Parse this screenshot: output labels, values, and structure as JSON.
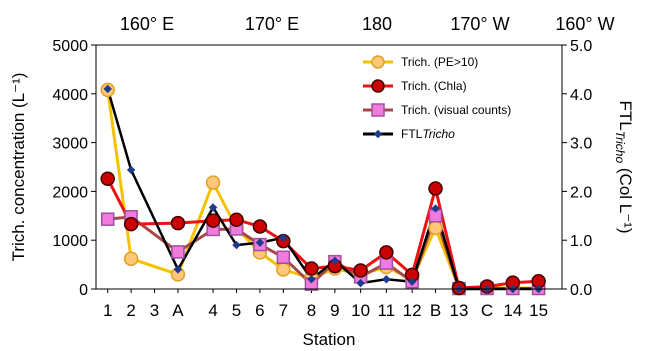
{
  "chart_data": {
    "type": "line",
    "xlabel": "Station",
    "ylabel_left": "Trich. concentration (L⁻¹)",
    "ylabel_right": "FTL",
    "ylabel_right_sub": "Tricho",
    "ylabel_right_unit": " (Col L⁻¹)",
    "top_axis_labels": [
      "160° E",
      "170° E",
      "180",
      "170° W",
      "160° W"
    ],
    "categories": [
      "1",
      "2",
      "3",
      "A",
      "4",
      "5",
      "6",
      "7",
      "8",
      "9",
      "10",
      "11",
      "12",
      "B",
      "13",
      "C",
      "14",
      "15"
    ],
    "category_x": [
      1,
      2,
      3,
      4,
      5.5,
      6.5,
      7.5,
      8.5,
      9.7,
      10.7,
      11.8,
      12.9,
      14,
      15,
      16,
      17.2,
      18.3,
      19.4
    ],
    "y_left": {
      "ticks": [
        "0",
        "1000",
        "2000",
        "3000",
        "4000",
        "5000"
      ],
      "range": [
        0,
        5000
      ]
    },
    "y_right": {
      "ticks": [
        "0.0",
        "1.0",
        "2.0",
        "3.0",
        "4.0",
        "5.0"
      ],
      "range": [
        0,
        5.0
      ]
    },
    "legend_position": "top-right",
    "series": [
      {
        "name": "Trich. (PE>10)",
        "axis": "left",
        "line_color": "#F5C200",
        "marker": "circle",
        "marker_fill": "#FFC77A",
        "marker_stroke": "#E0A020",
        "x": [
          1,
          2,
          4,
          5.5,
          6.5,
          7.5,
          8.5,
          9.7,
          10.7,
          11.8,
          12.9,
          14,
          15,
          16,
          17.2,
          18.3,
          19.4
        ],
        "values": [
          4080,
          620,
          300,
          2180,
          1250,
          750,
          400,
          220,
          420,
          300,
          450,
          200,
          1250,
          20,
          20,
          20,
          20
        ]
      },
      {
        "name": "Trich. (Chla)",
        "axis": "left",
        "line_color": "#EE1111",
        "marker": "circle",
        "marker_fill": "#CC0000",
        "marker_stroke": "#400000",
        "x": [
          1,
          2,
          4,
          5.5,
          6.5,
          7.5,
          8.5,
          9.7,
          10.7,
          11.8,
          12.9,
          14,
          15,
          16,
          17.2,
          18.3,
          19.4
        ],
        "values": [
          2260,
          1330,
          1350,
          1400,
          1420,
          1280,
          980,
          420,
          470,
          380,
          750,
          290,
          2060,
          20,
          50,
          130,
          160
        ]
      },
      {
        "name": "Trich. (visual counts)",
        "axis": "left",
        "line_color": "#A84747",
        "marker": "square",
        "marker_fill": "#F07BDD",
        "marker_stroke": "#A050A0",
        "x": [
          1,
          2,
          4,
          5.5,
          6.5,
          7.5,
          8.5,
          9.7,
          10.7,
          11.8,
          12.9,
          14,
          15,
          16,
          17.2,
          18.3,
          19.4
        ],
        "values": [
          1430,
          1480,
          760,
          1220,
          1230,
          910,
          650,
          100,
          560,
          250,
          530,
          150,
          1500,
          10,
          10,
          10,
          10
        ]
      },
      {
        "name": "FTL",
        "name_italic": "Tricho",
        "axis": "right",
        "line_color": "#000000",
        "marker": "diamond",
        "marker_fill": "#1F3B8C",
        "marker_stroke": "#1F3B8C",
        "x": [
          1,
          2,
          4,
          5.5,
          6.5,
          7.5,
          8.5,
          9.7,
          10.7,
          11.8,
          12.9,
          14,
          15,
          16,
          17.2,
          18.3,
          19.4
        ],
        "values": [
          4.1,
          2.44,
          0.4,
          1.67,
          0.9,
          0.95,
          1.05,
          0.2,
          0.58,
          0.12,
          0.2,
          0.15,
          1.65,
          0.0,
          0.0,
          0.0,
          0.0
        ]
      }
    ]
  }
}
